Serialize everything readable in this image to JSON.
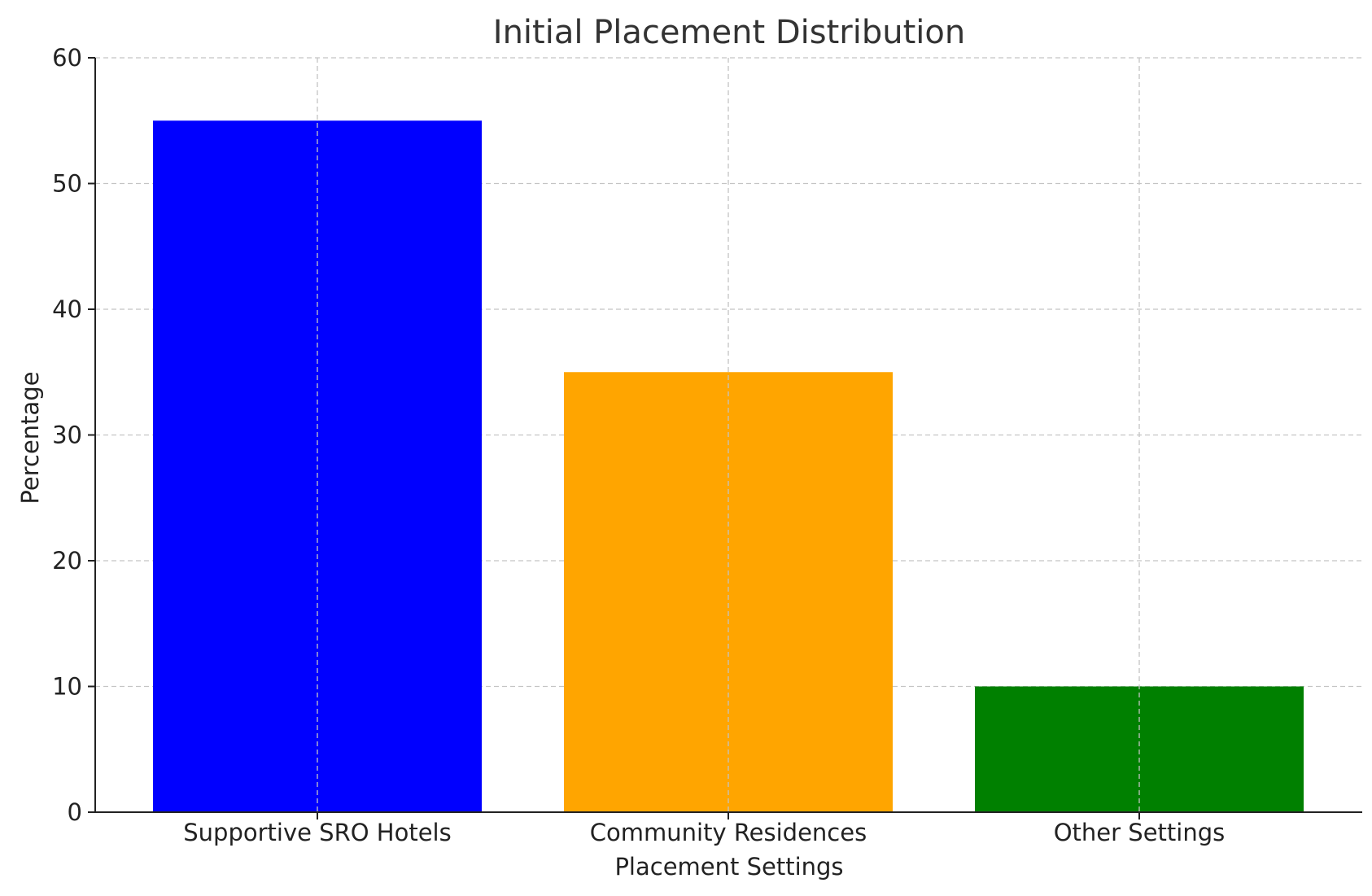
{
  "chart_data": {
    "type": "bar",
    "title": "Initial Placement Distribution",
    "xlabel": "Placement Settings",
    "ylabel": "Percentage",
    "categories": [
      "Supportive SRO Hotels",
      "Community Residences",
      "Other Settings"
    ],
    "values": [
      55,
      35,
      10
    ],
    "colors": [
      "#0000ff",
      "#ffa500",
      "#008000"
    ],
    "ylim": [
      0,
      60
    ],
    "yticks": [
      0,
      10,
      20,
      30,
      40,
      50,
      60
    ],
    "grid": true
  }
}
